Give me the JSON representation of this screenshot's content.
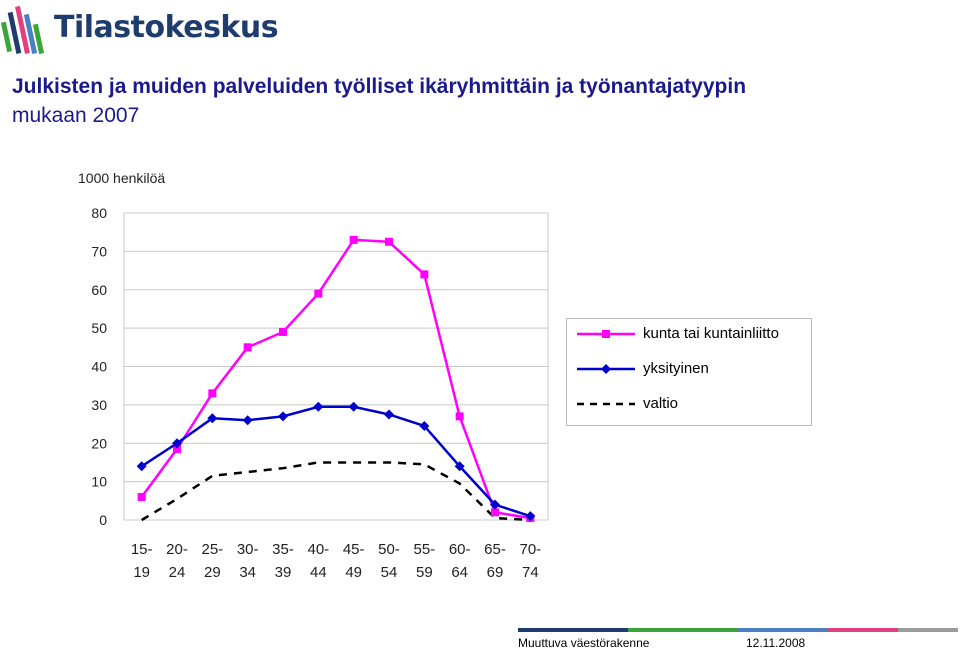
{
  "header": {
    "logo_text": "Tilastokeskus",
    "logo_icon": "tilastokeskus-bars-logo-icon",
    "title_line1": "Julkisten ja muiden palveluiden työlliset ikäryhmittäin ja työnantajatyypin",
    "title_line2": "mukaan 2007"
  },
  "chart_data": {
    "type": "line",
    "title": "Julkisten ja muiden palveluiden työlliset ikäryhmittäin ja työnantajatyypin mukaan 2007",
    "ylabel": "1000 henkilöä",
    "xlabel": "",
    "ylim": [
      0,
      80
    ],
    "yticks": [
      "0",
      "10",
      "20",
      "30",
      "40",
      "50",
      "60",
      "70",
      "80"
    ],
    "categories": [
      [
        "15-",
        "19"
      ],
      [
        "20-",
        "24"
      ],
      [
        "25-",
        "29"
      ],
      [
        "30-",
        "34"
      ],
      [
        "35-",
        "39"
      ],
      [
        "40-",
        "44"
      ],
      [
        "45-",
        "49"
      ],
      [
        "50-",
        "54"
      ],
      [
        "55-",
        "59"
      ],
      [
        "60-",
        "64"
      ],
      [
        "65-",
        "69"
      ],
      [
        "70-",
        "74"
      ]
    ],
    "grid": true,
    "legend_position": "right",
    "series": [
      {
        "name": "kunta tai kuntainliitto",
        "color": "#ff00ff",
        "marker": "square",
        "values": [
          6,
          18.5,
          33,
          45,
          49,
          59,
          73,
          72.5,
          64,
          27,
          2,
          0.5
        ]
      },
      {
        "name": "yksityinen",
        "color": "#0000cc",
        "marker": "diamond",
        "values": [
          14,
          20,
          26.5,
          26,
          27,
          29.5,
          29.5,
          27.5,
          24.5,
          14,
          4,
          1
        ]
      },
      {
        "name": "valtio",
        "color": "#000000",
        "marker": "none",
        "dash": true,
        "values": [
          0,
          5.5,
          11.5,
          12.5,
          13.5,
          15,
          15,
          15,
          14.5,
          9.5,
          0.5,
          0
        ]
      }
    ]
  },
  "footer": {
    "left_text": "Muuttuva väestörakenne",
    "right_text": "12.11.2008",
    "bar_colors": [
      "#1e3c6e",
      "#3aa63a",
      "#4a7fc4",
      "#e04080",
      "#9b9b9b"
    ]
  }
}
